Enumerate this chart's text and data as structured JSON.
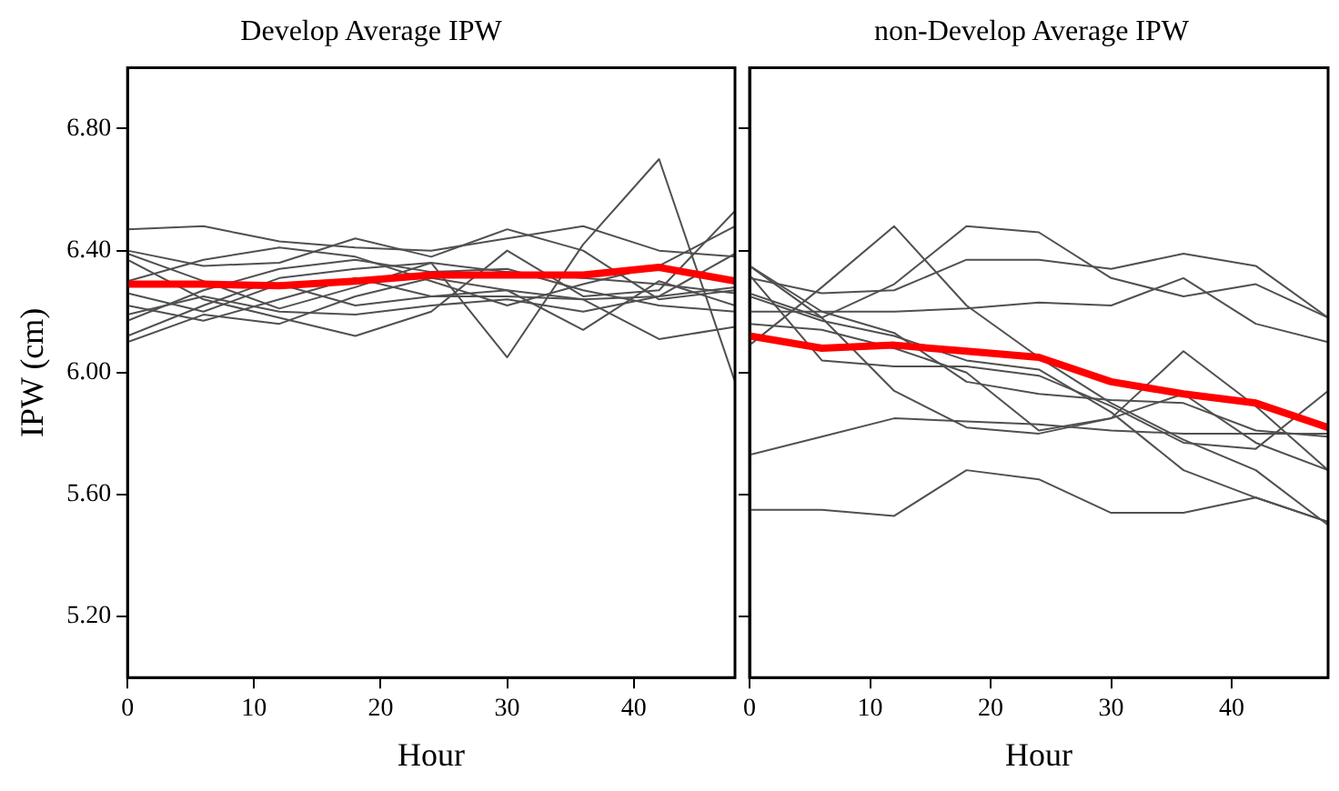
{
  "chart_data": [
    {
      "type": "line",
      "title": "Develop Average IPW",
      "xlabel": "Hour",
      "ylabel": "IPW (cm)",
      "x": [
        0,
        6,
        12,
        18,
        24,
        30,
        36,
        42,
        48
      ],
      "xlim": [
        0,
        48
      ],
      "xticks": [
        0,
        10,
        20,
        30,
        40
      ],
      "ylim": [
        5.0,
        7.0
      ],
      "yticks": [
        {
          "value": 5.2,
          "label": "5.20"
        },
        {
          "value": 5.6,
          "label": "5.60"
        },
        {
          "value": 6.0,
          "label": "6.00"
        },
        {
          "value": 6.4,
          "label": "6.40"
        },
        {
          "value": 6.8,
          "label": "6.80"
        }
      ],
      "grid": false,
      "legend": false,
      "marker": "none",
      "line_style": "solid",
      "series": [
        {
          "color": "#505050",
          "values": [
            6.47,
            6.48,
            6.43,
            6.41,
            6.4,
            6.44,
            6.48,
            6.4,
            6.38
          ]
        },
        {
          "color": "#505050",
          "values": [
            6.4,
            6.35,
            6.36,
            6.44,
            6.38,
            6.47,
            6.4,
            6.24,
            6.27
          ]
        },
        {
          "color": "#505050",
          "values": [
            6.39,
            6.3,
            6.21,
            6.28,
            6.36,
            6.05,
            6.42,
            6.7,
            5.97
          ]
        },
        {
          "color": "#505050",
          "values": [
            6.37,
            6.24,
            6.18,
            6.12,
            6.2,
            6.4,
            6.25,
            6.27,
            6.53
          ]
        },
        {
          "color": "#505050",
          "values": [
            6.3,
            6.37,
            6.41,
            6.38,
            6.3,
            6.22,
            6.29,
            6.35,
            6.48
          ]
        },
        {
          "color": "#505050",
          "values": [
            6.26,
            6.2,
            6.29,
            6.22,
            6.25,
            6.27,
            6.14,
            6.3,
            6.22
          ]
        },
        {
          "color": "#505050",
          "values": [
            6.22,
            6.17,
            6.24,
            6.31,
            6.25,
            6.25,
            6.24,
            6.11,
            6.15
          ]
        },
        {
          "color": "#505050",
          "values": [
            6.19,
            6.25,
            6.2,
            6.19,
            6.22,
            6.24,
            6.2,
            6.25,
            6.39
          ]
        },
        {
          "color": "#505050",
          "values": [
            6.12,
            6.22,
            6.31,
            6.34,
            6.36,
            6.33,
            6.31,
            6.29,
            6.26
          ]
        },
        {
          "color": "#505050",
          "values": [
            6.17,
            6.27,
            6.34,
            6.37,
            6.33,
            6.34,
            6.27,
            6.22,
            6.2
          ]
        },
        {
          "color": "#505050",
          "values": [
            6.1,
            6.19,
            6.16,
            6.25,
            6.31,
            6.27,
            6.24,
            6.25,
            6.28
          ]
        },
        {
          "color": "#ff0000",
          "values": [
            6.29,
            6.29,
            6.285,
            6.3,
            6.32,
            6.32,
            6.32,
            6.345,
            6.3
          ]
        }
      ]
    },
    {
      "type": "line",
      "title": "non-Develop Average IPW",
      "xlabel": "Hour",
      "x": [
        0,
        6,
        12,
        18,
        24,
        30,
        36,
        42,
        48
      ],
      "xlim": [
        0,
        48
      ],
      "xticks": [
        0,
        10,
        20,
        30,
        40
      ],
      "ylim": [
        5.0,
        7.0
      ],
      "yticks": [
        {
          "value": 5.2,
          "label": null
        },
        {
          "value": 5.6,
          "label": null
        },
        {
          "value": 6.0,
          "label": null
        },
        {
          "value": 6.4,
          "label": null
        },
        {
          "value": 6.8,
          "label": null
        }
      ],
      "tick_labels": "x",
      "grid": false,
      "legend": false,
      "marker": "none",
      "line_style": "solid",
      "series": [
        {
          "color": "#505050",
          "values": [
            6.09,
            6.28,
            6.48,
            6.22,
            6.05,
            5.9,
            5.78,
            5.68,
            5.5
          ]
        },
        {
          "color": "#505050",
          "values": [
            6.35,
            6.18,
            6.29,
            6.48,
            6.46,
            6.31,
            6.25,
            6.29,
            6.18
          ]
        },
        {
          "color": "#505050",
          "values": [
            6.31,
            6.26,
            6.27,
            6.37,
            6.37,
            6.34,
            6.39,
            6.35,
            6.18
          ]
        },
        {
          "color": "#505050",
          "values": [
            6.2,
            6.2,
            6.2,
            6.21,
            6.23,
            6.22,
            6.31,
            6.16,
            6.1
          ]
        },
        {
          "color": "#505050",
          "values": [
            6.25,
            6.17,
            6.12,
            6.04,
            6.01,
            5.87,
            5.68,
            5.59,
            5.51
          ]
        },
        {
          "color": "#505050",
          "values": [
            6.32,
            6.04,
            6.02,
            6.02,
            5.99,
            5.89,
            5.77,
            5.75,
            5.94
          ]
        },
        {
          "color": "#505050",
          "values": [
            6.35,
            6.2,
            6.13,
            5.97,
            5.93,
            5.91,
            5.9,
            5.81,
            5.79
          ]
        },
        {
          "color": "#505050",
          "values": [
            5.73,
            5.79,
            5.85,
            5.84,
            5.83,
            5.81,
            5.8,
            5.8,
            5.8
          ]
        },
        {
          "color": "#505050",
          "values": [
            5.55,
            5.55,
            5.53,
            5.68,
            5.65,
            5.54,
            5.54,
            5.59,
            5.51
          ]
        },
        {
          "color": "#505050",
          "values": [
            6.16,
            6.14,
            6.08,
            6.0,
            5.81,
            5.85,
            6.07,
            5.89,
            5.68
          ]
        },
        {
          "color": "#505050",
          "values": [
            6.26,
            6.18,
            5.94,
            5.82,
            5.8,
            5.85,
            5.93,
            5.77,
            5.68
          ]
        },
        {
          "color": "#ff0000",
          "values": [
            6.12,
            6.08,
            6.09,
            6.07,
            6.05,
            5.97,
            5.93,
            5.9,
            5.82
          ]
        }
      ]
    }
  ]
}
